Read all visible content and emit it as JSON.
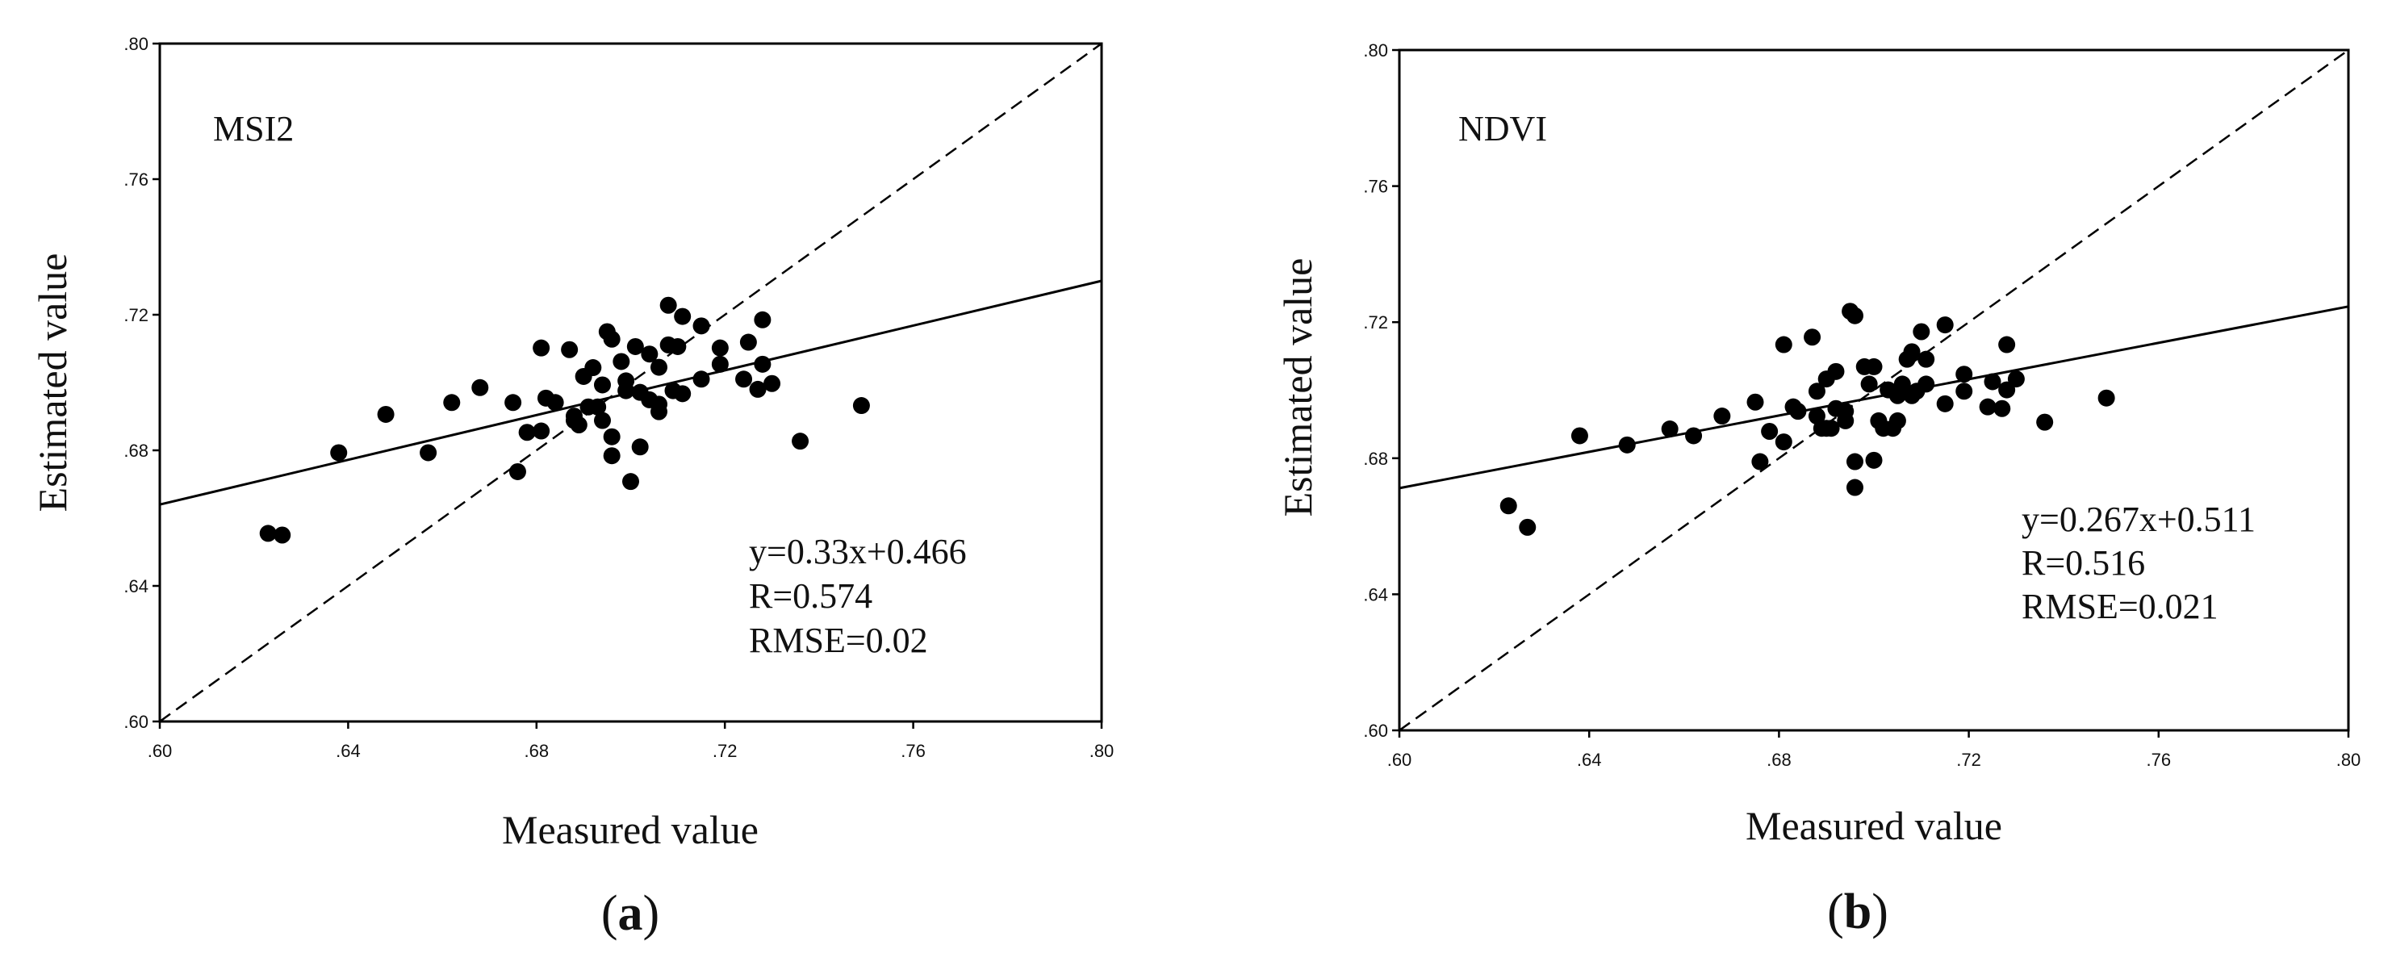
{
  "chart_data": [
    {
      "type": "scatter",
      "panel_label": "MSI2",
      "caption_letter": "a",
      "xlabel": "Measured value",
      "ylabel": "Estimated value",
      "xlim": [
        0.6,
        0.8
      ],
      "ylim": [
        0.6,
        0.8
      ],
      "xticks": [
        ".60",
        ".64",
        ".68",
        ".72",
        ".76",
        ".80"
      ],
      "yticks": [
        ".60",
        ".64",
        ".68",
        ".72",
        ".76",
        ".80"
      ],
      "fit_line": {
        "slope": 0.33,
        "intercept": 0.466
      },
      "reference_line": "1:1",
      "stats": [
        "y=0.33x+0.466",
        "R=0.574",
        "RMSE=0.02"
      ],
      "points": [
        [
          0.623,
          0.6555
        ],
        [
          0.626,
          0.655
        ],
        [
          0.638,
          0.6793
        ],
        [
          0.648,
          0.6906
        ],
        [
          0.657,
          0.6793
        ],
        [
          0.662,
          0.6941
        ],
        [
          0.668,
          0.6985
        ],
        [
          0.675,
          0.6941
        ],
        [
          0.676,
          0.6737
        ],
        [
          0.678,
          0.6853
        ],
        [
          0.681,
          0.6857
        ],
        [
          0.681,
          0.7102
        ],
        [
          0.682,
          0.6954
        ],
        [
          0.684,
          0.6941
        ],
        [
          0.687,
          0.7097
        ],
        [
          0.688,
          0.6888
        ],
        [
          0.688,
          0.6901
        ],
        [
          0.689,
          0.6875
        ],
        [
          0.69,
          0.7018
        ],
        [
          0.691,
          0.6928
        ],
        [
          0.692,
          0.7044
        ],
        [
          0.693,
          0.6928
        ],
        [
          0.694,
          0.6993
        ],
        [
          0.694,
          0.6888
        ],
        [
          0.695,
          0.715
        ],
        [
          0.696,
          0.7128
        ],
        [
          0.696,
          0.684
        ],
        [
          0.696,
          0.6784
        ],
        [
          0.698,
          0.7062
        ],
        [
          0.699,
          0.6976
        ],
        [
          0.699,
          0.7005
        ],
        [
          0.7,
          0.6708
        ],
        [
          0.701,
          0.7106
        ],
        [
          0.702,
          0.681
        ],
        [
          0.702,
          0.6971
        ],
        [
          0.704,
          0.7084
        ],
        [
          0.704,
          0.6949
        ],
        [
          0.706,
          0.6936
        ],
        [
          0.706,
          0.6914
        ],
        [
          0.706,
          0.7045
        ],
        [
          0.708,
          0.7111
        ],
        [
          0.708,
          0.7228
        ],
        [
          0.709,
          0.6976
        ],
        [
          0.71,
          0.7106
        ],
        [
          0.711,
          0.6967
        ],
        [
          0.711,
          0.7195
        ],
        [
          0.715,
          0.7167
        ],
        [
          0.715,
          0.701
        ],
        [
          0.719,
          0.7054
        ],
        [
          0.719,
          0.7102
        ],
        [
          0.724,
          0.701
        ],
        [
          0.725,
          0.7119
        ],
        [
          0.727,
          0.698
        ],
        [
          0.728,
          0.7185
        ],
        [
          0.728,
          0.7054
        ],
        [
          0.73,
          0.6997
        ],
        [
          0.736,
          0.6827
        ],
        [
          0.749,
          0.6932
        ]
      ]
    },
    {
      "type": "scatter",
      "panel_label": "NDVI",
      "caption_letter": "b",
      "xlabel": "Measured value",
      "ylabel": "Estimated value",
      "xlim": [
        0.6,
        0.8
      ],
      "ylim": [
        0.6,
        0.8
      ],
      "xticks": [
        ".60",
        ".64",
        ".68",
        ".72",
        ".76",
        ".80"
      ],
      "yticks": [
        ".60",
        ".64",
        ".68",
        ".72",
        ".76",
        ".80"
      ],
      "fit_line": {
        "slope": 0.267,
        "intercept": 0.511
      },
      "reference_line": "1:1",
      "stats": [
        "y=0.267x+0.511",
        "R=0.516",
        "RMSE=0.021"
      ],
      "points": [
        [
          0.623,
          0.666
        ],
        [
          0.627,
          0.6597
        ],
        [
          0.638,
          0.6866
        ],
        [
          0.648,
          0.6839
        ],
        [
          0.657,
          0.6886
        ],
        [
          0.662,
          0.6866
        ],
        [
          0.668,
          0.6924
        ],
        [
          0.675,
          0.6965
        ],
        [
          0.676,
          0.679
        ],
        [
          0.678,
          0.6879
        ],
        [
          0.681,
          0.7134
        ],
        [
          0.681,
          0.6848
        ],
        [
          0.683,
          0.6951
        ],
        [
          0.684,
          0.6938
        ],
        [
          0.687,
          0.7156
        ],
        [
          0.688,
          0.6924
        ],
        [
          0.688,
          0.6997
        ],
        [
          0.689,
          0.6888
        ],
        [
          0.69,
          0.6888
        ],
        [
          0.69,
          0.7033
        ],
        [
          0.691,
          0.6888
        ],
        [
          0.692,
          0.6946
        ],
        [
          0.692,
          0.7055
        ],
        [
          0.694,
          0.691
        ],
        [
          0.694,
          0.6938
        ],
        [
          0.695,
          0.7232
        ],
        [
          0.696,
          0.7219
        ],
        [
          0.696,
          0.679
        ],
        [
          0.696,
          0.6714
        ],
        [
          0.698,
          0.7069
        ],
        [
          0.699,
          0.7018
        ],
        [
          0.7,
          0.6794
        ],
        [
          0.7,
          0.7069
        ],
        [
          0.701,
          0.691
        ],
        [
          0.702,
          0.6888
        ],
        [
          0.703,
          0.7001
        ],
        [
          0.704,
          0.6888
        ],
        [
          0.705,
          0.691
        ],
        [
          0.705,
          0.6984
        ],
        [
          0.706,
          0.7018
        ],
        [
          0.707,
          0.7091
        ],
        [
          0.708,
          0.6984
        ],
        [
          0.708,
          0.7113
        ],
        [
          0.709,
          0.6997
        ],
        [
          0.71,
          0.7172
        ],
        [
          0.711,
          0.7091
        ],
        [
          0.711,
          0.7018
        ],
        [
          0.715,
          0.696
        ],
        [
          0.715,
          0.7192
        ],
        [
          0.719,
          0.7047
        ],
        [
          0.719,
          0.6997
        ],
        [
          0.724,
          0.6951
        ],
        [
          0.725,
          0.7025
        ],
        [
          0.727,
          0.6946
        ],
        [
          0.728,
          0.7134
        ],
        [
          0.728,
          0.7001
        ],
        [
          0.73,
          0.7033
        ],
        [
          0.736,
          0.6906
        ],
        [
          0.749,
          0.6977
        ]
      ]
    }
  ]
}
